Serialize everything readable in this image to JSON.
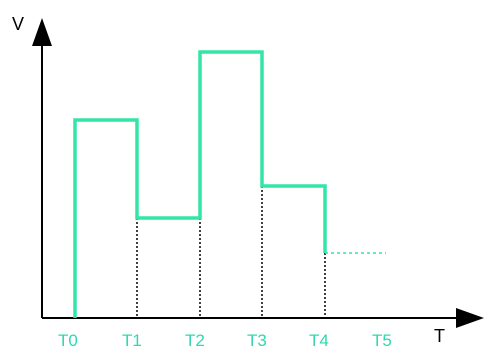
{
  "axes": {
    "y_label": "V",
    "x_label": "T"
  },
  "time_labels": [
    "T0",
    "T1",
    "T2",
    "T3",
    "T4",
    "T5"
  ]
}
